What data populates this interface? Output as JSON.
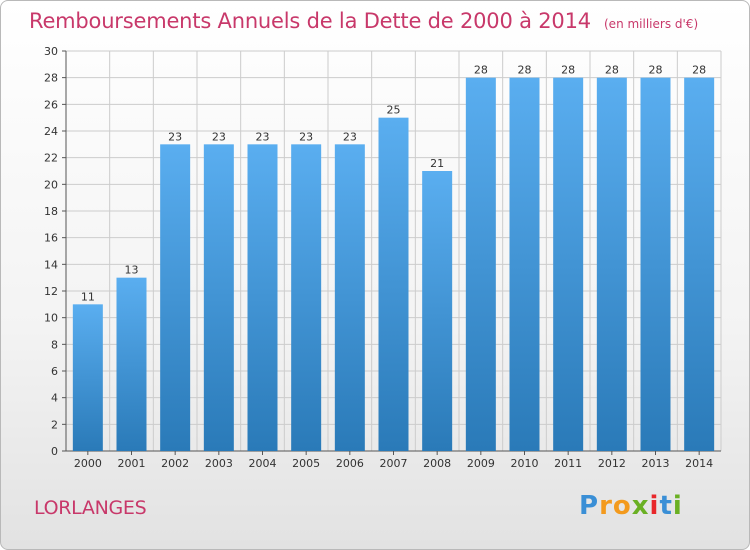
{
  "title": "Remboursements Annuels de la Dette de 2000 à 2014",
  "subtitle": "(en milliers d'€)",
  "commune": "LORLANGES",
  "logo": {
    "letters": [
      "P",
      "r",
      "o",
      "x",
      "i",
      "t",
      "i"
    ],
    "colors": [
      "#3a8fd6",
      "#f39a1d",
      "#f39a1d",
      "#6ab023",
      "#e8272a",
      "#3a8fd6",
      "#6ab023"
    ]
  },
  "colors": {
    "bar_light": "#5aaef0",
    "bar_dark": "#2a7ab8",
    "grid": "#cccccc",
    "axis": "#555555"
  },
  "chart_data": {
    "type": "bar",
    "title": "Remboursements Annuels de la Dette de 2000 à 2014",
    "xlabel": "",
    "ylabel": "",
    "ylim": [
      0,
      30
    ],
    "yticks": [
      0,
      2,
      4,
      6,
      8,
      10,
      12,
      14,
      16,
      18,
      20,
      22,
      24,
      26,
      28,
      30
    ],
    "grid": true,
    "categories": [
      "2000",
      "2001",
      "2002",
      "2003",
      "2004",
      "2005",
      "2006",
      "2007",
      "2008",
      "2009",
      "2010",
      "2011",
      "2012",
      "2013",
      "2014"
    ],
    "values": [
      11,
      13,
      23,
      23,
      23,
      23,
      23,
      25,
      21,
      28,
      28,
      28,
      28,
      28,
      28
    ]
  }
}
